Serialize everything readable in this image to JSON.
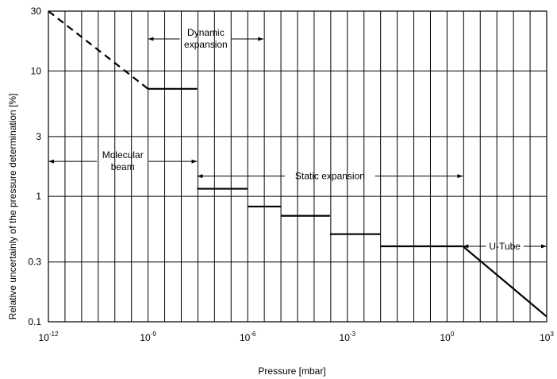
{
  "chart_data": {
    "type": "line",
    "title": "",
    "xlabel": "Pressure [mbar]",
    "ylabel": "Relative uncertainly of the pressure determination [%]",
    "x_scale": "log",
    "y_scale": "log",
    "xlim": [
      1e-12,
      1000
    ],
    "ylim": [
      0.1,
      30
    ],
    "x_ticks": [
      {
        "value": 1e-12,
        "base": "10",
        "exp": "-12"
      },
      {
        "value": 1e-09,
        "base": "10",
        "exp": "-9"
      },
      {
        "value": 1e-06,
        "base": "10",
        "exp": "-6"
      },
      {
        "value": 0.001,
        "base": "10",
        "exp": "-3"
      },
      {
        "value": 1,
        "base": "10",
        "exp": "0"
      },
      {
        "value": 1000,
        "base": "10",
        "exp": "3"
      }
    ],
    "y_ticks": [
      {
        "value": 30,
        "label": "30"
      },
      {
        "value": 10,
        "label": "10"
      },
      {
        "value": 3,
        "label": "3"
      },
      {
        "value": 1,
        "label": "1"
      },
      {
        "value": 0.3,
        "label": "0.3"
      },
      {
        "value": 0.1,
        "label": "0.1"
      }
    ],
    "grid": true,
    "dashed_segment": [
      [
        1e-12,
        30
      ],
      [
        1e-09,
        7.2
      ]
    ],
    "steps": [
      {
        "x1": 1e-09,
        "x2": 3e-08,
        "y": 7.2
      },
      {
        "x1": 3e-08,
        "x2": 1e-06,
        "y": 1.15
      },
      {
        "x1": 1e-06,
        "x2": 1e-05,
        "y": 0.83
      },
      {
        "x1": 1e-05,
        "x2": 0.0003,
        "y": 0.7
      },
      {
        "x1": 0.0003,
        "x2": 0.01,
        "y": 0.5
      },
      {
        "x1": 0.01,
        "x2": 3,
        "y": 0.4
      }
    ],
    "tail_segment": [
      [
        3,
        0.4
      ],
      [
        1000,
        0.11
      ]
    ],
    "regions": [
      {
        "name": "Dynamic expansion",
        "lines": [
          "Dynamic",
          "expansion"
        ],
        "x1": 1e-09,
        "x2": 3e-06,
        "y": 18
      },
      {
        "name": "Molecular beam",
        "lines": [
          "Molecular",
          "beam"
        ],
        "x1": 1e-12,
        "x2": 3e-08,
        "y": 1.9
      },
      {
        "name": "Static expansion",
        "lines": [
          "Static expansion"
        ],
        "x1": 3e-08,
        "x2": 3,
        "y": 1.45
      },
      {
        "name": "U-Tube",
        "lines": [
          "U-Tube"
        ],
        "x1": 3,
        "x2": 1000,
        "y": 0.4
      }
    ]
  }
}
